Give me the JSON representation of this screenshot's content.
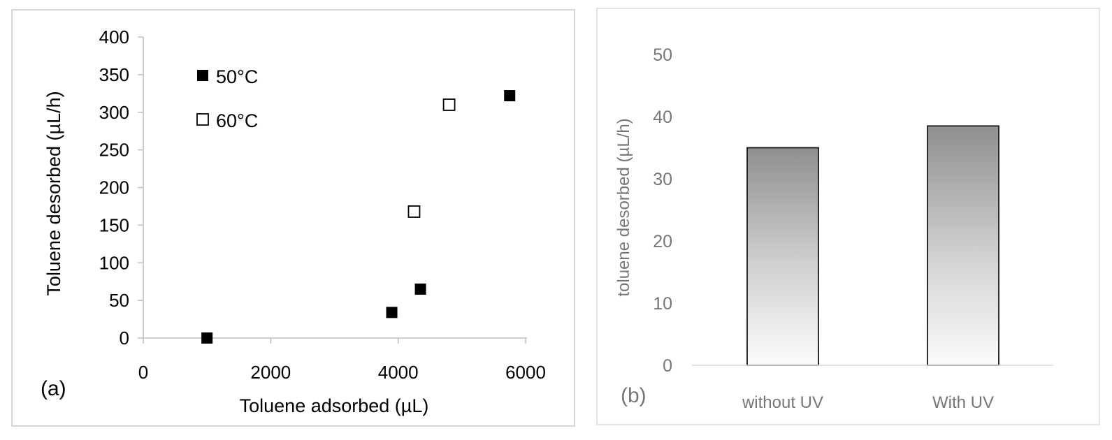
{
  "chart_data": [
    {
      "panel": "(a)",
      "type": "scatter",
      "xlabel": "Toluene adsorbed (µL)",
      "ylabel": "Toluene desorbed (µL/h)",
      "xlim": [
        0,
        6000
      ],
      "ylim": [
        0,
        400
      ],
      "xticks": [
        "0",
        "2000",
        "4000",
        "6000"
      ],
      "yticks": [
        "0",
        "50",
        "100",
        "150",
        "200",
        "250",
        "300",
        "350",
        "400"
      ],
      "legend_position": "top-left",
      "series": [
        {
          "name": "50°C",
          "marker": "filled-square",
          "points": [
            {
              "x": 1000,
              "y": 0
            },
            {
              "x": 3900,
              "y": 34
            },
            {
              "x": 4350,
              "y": 65
            },
            {
              "x": 5750,
              "y": 322
            }
          ]
        },
        {
          "name": "60°C",
          "marker": "open-square",
          "points": [
            {
              "x": 4250,
              "y": 168
            },
            {
              "x": 4800,
              "y": 310
            }
          ]
        }
      ]
    },
    {
      "panel": "(b)",
      "type": "bar",
      "ylabel": "toluene desorbed (µL/h)",
      "ylim": [
        0,
        50
      ],
      "yticks": [
        "0",
        "10",
        "20",
        "30",
        "40",
        "50"
      ],
      "categories": [
        "without UV",
        "With UV"
      ],
      "values": [
        35,
        38.5
      ]
    }
  ],
  "colors": {
    "panel_a_text": "#000000",
    "panel_b_text": "#767676",
    "frame": "#c8c8c8",
    "axis": "#d9d9d9"
  }
}
